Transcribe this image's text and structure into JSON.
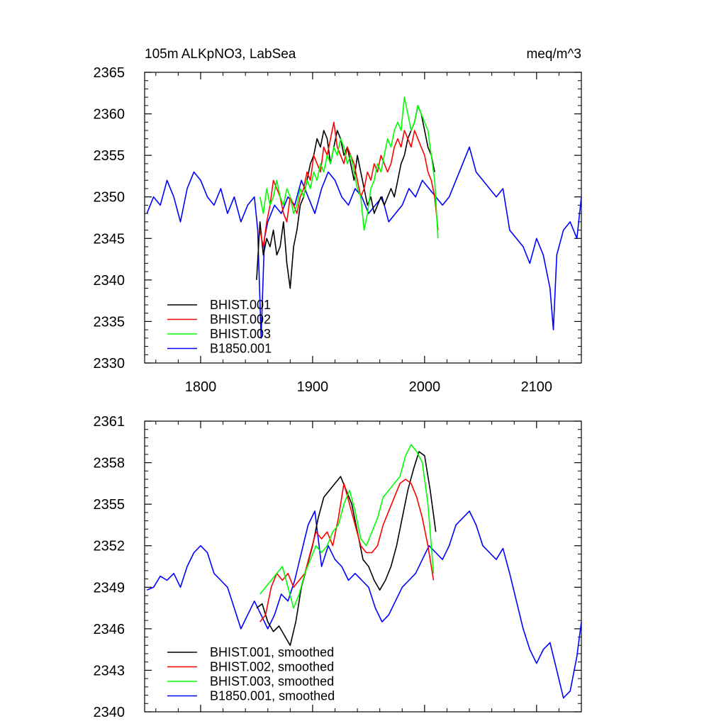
{
  "chart_data": [
    {
      "type": "line",
      "title": "105m ALKpNO3, LabSea",
      "units": "meq/m^3",
      "xlim": [
        1750,
        2140
      ],
      "ylim": [
        2330,
        2365
      ],
      "xticks": [
        1800,
        1900,
        2000,
        2100
      ],
      "yticks": [
        2330,
        2335,
        2340,
        2345,
        2350,
        2355,
        2360,
        2365
      ],
      "xtick_labels": [
        "1800",
        "1900",
        "2000",
        "2100"
      ],
      "ytick_labels": [
        "2330",
        "2335",
        "2340",
        "2345",
        "2350",
        "2355",
        "2360",
        "2365"
      ],
      "grid": false,
      "legend_position": "bottom-left",
      "series": [
        {
          "name": "BHIST.001",
          "color": "#000000",
          "x": [
            1850,
            1853,
            1856,
            1859,
            1862,
            1865,
            1868,
            1871,
            1874,
            1877,
            1880,
            1883,
            1886,
            1889,
            1892,
            1895,
            1898,
            1901,
            1904,
            1907,
            1910,
            1913,
            1916,
            1919,
            1922,
            1925,
            1928,
            1931,
            1934,
            1937,
            1940,
            1943,
            1946,
            1949,
            1952,
            1955,
            1958,
            1961,
            1964,
            1967,
            1970,
            1973,
            1976,
            1979,
            1982,
            1985,
            1988,
            1991,
            1994,
            1997,
            2000,
            2003,
            2006,
            2009
          ],
          "y": [
            2340,
            2347,
            2343,
            2345,
            2344,
            2346,
            2343,
            2344,
            2347,
            2342,
            2339,
            2344,
            2346,
            2349,
            2350,
            2352,
            2354,
            2355,
            2357,
            2356,
            2358,
            2357,
            2354,
            2356,
            2358,
            2357,
            2355,
            2356,
            2354,
            2352,
            2355,
            2353,
            2351,
            2349,
            2350,
            2348,
            2349,
            2350,
            2349,
            2350,
            2351,
            2350,
            2352,
            2354,
            2355,
            2357,
            2358,
            2359,
            2361,
            2360,
            2358,
            2356,
            2355,
            2353
          ]
        },
        {
          "name": "BHIST.002",
          "color": "#ff0000",
          "x": [
            1853,
            1856,
            1859,
            1862,
            1865,
            1868,
            1871,
            1874,
            1877,
            1880,
            1883,
            1886,
            1889,
            1892,
            1895,
            1898,
            1901,
            1904,
            1907,
            1910,
            1913,
            1916,
            1919,
            1922,
            1925,
            1928,
            1931,
            1934,
            1937,
            1940,
            1943,
            1946,
            1949,
            1952,
            1955,
            1958,
            1961,
            1964,
            1967,
            1970,
            1973,
            1976,
            1979,
            1982,
            1985,
            1988,
            1991,
            1994,
            1997,
            2000,
            2003,
            2006,
            2009,
            2012
          ],
          "y": [
            2346,
            2344,
            2347,
            2349,
            2352,
            2351,
            2350,
            2348,
            2347,
            2350,
            2349,
            2348,
            2350,
            2351,
            2353,
            2352,
            2355,
            2354,
            2353,
            2356,
            2355,
            2357,
            2359,
            2356,
            2355,
            2354,
            2356,
            2355,
            2354,
            2352,
            2350,
            2351,
            2353,
            2352,
            2354,
            2353,
            2355,
            2354,
            2353,
            2354,
            2356,
            2357,
            2356,
            2358,
            2357,
            2356,
            2358,
            2357,
            2356,
            2355,
            2353,
            2352,
            2350,
            2346
          ]
        },
        {
          "name": "BHIST.003",
          "color": "#00ff00",
          "x": [
            1853,
            1856,
            1859,
            1862,
            1865,
            1868,
            1871,
            1874,
            1877,
            1880,
            1883,
            1886,
            1889,
            1892,
            1895,
            1898,
            1901,
            1904,
            1907,
            1910,
            1913,
            1916,
            1919,
            1922,
            1925,
            1928,
            1931,
            1934,
            1937,
            1940,
            1943,
            1946,
            1949,
            1952,
            1955,
            1958,
            1961,
            1964,
            1967,
            1970,
            1973,
            1976,
            1979,
            1982,
            1985,
            1988,
            1991,
            1994,
            1997,
            2000,
            2003,
            2006,
            2009,
            2012
          ],
          "y": [
            2350,
            2348,
            2351,
            2349,
            2350,
            2352,
            2350,
            2349,
            2351,
            2350,
            2348,
            2349,
            2351,
            2350,
            2352,
            2351,
            2353,
            2352,
            2354,
            2353,
            2355,
            2354,
            2356,
            2355,
            2357,
            2356,
            2354,
            2355,
            2353,
            2351,
            2350,
            2346,
            2348,
            2351,
            2352,
            2354,
            2353,
            2355,
            2357,
            2356,
            2358,
            2359,
            2358,
            2362,
            2360,
            2358,
            2359,
            2361,
            2360,
            2359,
            2358,
            2355,
            2352,
            2345
          ]
        },
        {
          "name": "B1850.001",
          "color": "#0000ff",
          "x": [
            1752,
            1758,
            1764,
            1770,
            1776,
            1782,
            1788,
            1794,
            1800,
            1806,
            1812,
            1818,
            1824,
            1830,
            1836,
            1842,
            1848,
            1851,
            1854,
            1857,
            1860,
            1866,
            1872,
            1878,
            1884,
            1890,
            1896,
            1902,
            1908,
            1914,
            1920,
            1926,
            1932,
            1938,
            1944,
            1950,
            1956,
            1962,
            1968,
            1974,
            1980,
            1986,
            1992,
            1998,
            2004,
            2010,
            2016,
            2022,
            2028,
            2034,
            2040,
            2046,
            2052,
            2058,
            2064,
            2070,
            2076,
            2082,
            2088,
            2094,
            2100,
            2106,
            2112,
            2115,
            2118,
            2124,
            2130,
            2136,
            2140
          ],
          "y": [
            2348,
            2350,
            2349,
            2352,
            2350,
            2347,
            2351,
            2353,
            2352,
            2350,
            2349,
            2351,
            2348,
            2350,
            2347,
            2349,
            2350,
            2346,
            2333,
            2345,
            2347,
            2349,
            2348,
            2350,
            2349,
            2352,
            2350,
            2348,
            2351,
            2353,
            2352,
            2350,
            2349,
            2351,
            2350,
            2348,
            2349,
            2350,
            2347,
            2348,
            2349,
            2351,
            2350,
            2352,
            2351,
            2350,
            2349,
            2350,
            2352,
            2354,
            2356,
            2353,
            2352,
            2351,
            2350,
            2351,
            2346,
            2345,
            2344,
            2342,
            2345,
            2343,
            2339,
            2334,
            2343,
            2346,
            2347,
            2345,
            2350
          ]
        }
      ]
    },
    {
      "type": "line",
      "title": "",
      "xlim": [
        1750,
        2140
      ],
      "ylim": [
        2340,
        2361
      ],
      "xticks": [
        1800,
        1900,
        2000,
        2100
      ],
      "yticks": [
        2340,
        2343,
        2346,
        2349,
        2352,
        2355,
        2358,
        2361
      ],
      "xtick_labels": [],
      "ytick_labels": [
        "2340",
        "2343",
        "2346",
        "2349",
        "2352",
        "2355",
        "2358",
        "2361"
      ],
      "grid": false,
      "legend_position": "bottom-left",
      "series": [
        {
          "name": "BHIST.001, smoothed",
          "color": "#000000",
          "x": [
            1850,
            1855,
            1860,
            1865,
            1870,
            1875,
            1880,
            1885,
            1890,
            1895,
            1900,
            1905,
            1910,
            1915,
            1920,
            1925,
            1930,
            1935,
            1940,
            1945,
            1950,
            1955,
            1960,
            1965,
            1970,
            1975,
            1980,
            1985,
            1990,
            1995,
            2000,
            2005,
            2010
          ],
          "y": [
            2347.5,
            2347.8,
            2346.5,
            2345.8,
            2346.2,
            2345.5,
            2344.8,
            2346.5,
            2349.0,
            2350.5,
            2352.0,
            2354.0,
            2355.5,
            2356.0,
            2356.5,
            2357.0,
            2356.0,
            2355.0,
            2353.0,
            2351.0,
            2350.5,
            2349.5,
            2348.8,
            2349.5,
            2350.5,
            2352.0,
            2354.0,
            2356.0,
            2357.5,
            2358.8,
            2358.5,
            2356.0,
            2353.0
          ]
        },
        {
          "name": "BHIST.002, smoothed",
          "color": "#ff0000",
          "x": [
            1853,
            1858,
            1863,
            1868,
            1873,
            1878,
            1883,
            1888,
            1893,
            1898,
            1903,
            1908,
            1913,
            1918,
            1923,
            1928,
            1933,
            1938,
            1943,
            1948,
            1953,
            1958,
            1963,
            1968,
            1973,
            1978,
            1983,
            1988,
            1993,
            1998,
            2003,
            2008
          ],
          "y": [
            2346.5,
            2347.0,
            2349.0,
            2350.0,
            2349.5,
            2350.0,
            2349.0,
            2349.5,
            2350.0,
            2351.5,
            2353.0,
            2352.5,
            2353.0,
            2352.0,
            2354.0,
            2356.5,
            2355.0,
            2353.5,
            2352.0,
            2351.5,
            2351.5,
            2352.0,
            2353.5,
            2354.5,
            2355.5,
            2356.5,
            2356.8,
            2356.5,
            2355.5,
            2354.0,
            2352.0,
            2349.5
          ]
        },
        {
          "name": "BHIST.003, smoothed",
          "color": "#00ff00",
          "x": [
            1853,
            1858,
            1863,
            1868,
            1873,
            1878,
            1883,
            1888,
            1893,
            1898,
            1903,
            1908,
            1913,
            1918,
            1923,
            1928,
            1933,
            1938,
            1943,
            1948,
            1953,
            1958,
            1963,
            1968,
            1973,
            1978,
            1983,
            1988,
            1993,
            1998,
            2003,
            2008
          ],
          "y": [
            2348.5,
            2349.0,
            2349.5,
            2350.0,
            2350.5,
            2349.0,
            2347.5,
            2348.5,
            2350.0,
            2351.0,
            2352.0,
            2351.5,
            2352.0,
            2353.0,
            2353.5,
            2355.0,
            2356.0,
            2354.5,
            2352.5,
            2352.0,
            2353.0,
            2354.0,
            2355.5,
            2356.0,
            2356.5,
            2357.0,
            2358.5,
            2359.3,
            2358.8,
            2358.0,
            2355.0,
            2350.0
          ]
        },
        {
          "name": "B1850.001, smoothed",
          "color": "#0000ff",
          "x": [
            1752,
            1758,
            1764,
            1770,
            1776,
            1782,
            1788,
            1794,
            1800,
            1806,
            1812,
            1818,
            1824,
            1830,
            1836,
            1842,
            1848,
            1854,
            1860,
            1866,
            1872,
            1878,
            1884,
            1890,
            1896,
            1902,
            1908,
            1914,
            1920,
            1926,
            1932,
            1938,
            1944,
            1950,
            1956,
            1962,
            1968,
            1974,
            1980,
            1986,
            1992,
            1998,
            2004,
            2010,
            2016,
            2022,
            2028,
            2034,
            2040,
            2046,
            2052,
            2058,
            2064,
            2070,
            2076,
            2082,
            2088,
            2094,
            2100,
            2106,
            2112,
            2118,
            2124,
            2130,
            2136,
            2140
          ],
          "y": [
            2348.8,
            2349.0,
            2349.8,
            2349.5,
            2350.0,
            2349.0,
            2350.5,
            2351.5,
            2352.0,
            2351.5,
            2350.0,
            2349.5,
            2349.0,
            2347.5,
            2346.0,
            2347.0,
            2348.0,
            2347.0,
            2346.0,
            2347.0,
            2348.5,
            2348.0,
            2349.5,
            2351.5,
            2353.5,
            2354.5,
            2350.5,
            2352.0,
            2351.0,
            2350.5,
            2349.5,
            2350.0,
            2349.5,
            2349.0,
            2347.5,
            2346.5,
            2347.0,
            2348.0,
            2349.0,
            2349.5,
            2350.0,
            2351.0,
            2352.0,
            2351.5,
            2351.0,
            2352.0,
            2353.5,
            2354.0,
            2354.5,
            2353.5,
            2352.0,
            2351.5,
            2351.0,
            2351.8,
            2350.0,
            2348.0,
            2346.0,
            2344.5,
            2343.5,
            2344.5,
            2345.0,
            2343.0,
            2341.0,
            2341.5,
            2344.0,
            2346.5
          ]
        }
      ]
    }
  ]
}
